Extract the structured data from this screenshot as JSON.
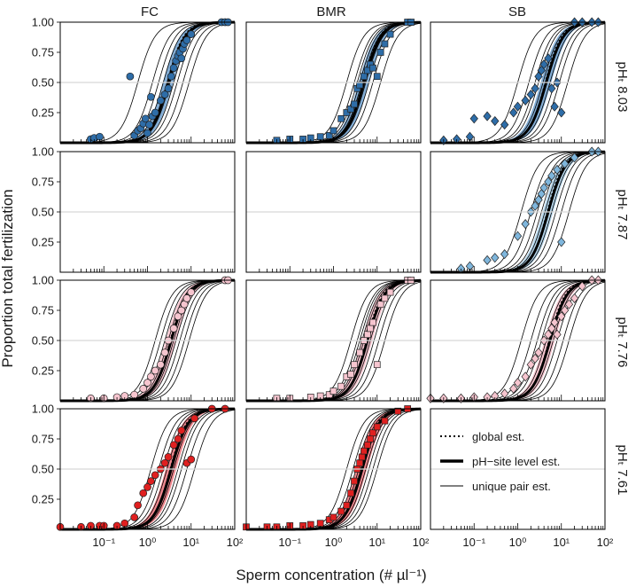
{
  "chart_data": {
    "type": "scatter",
    "xlabel": "Sperm concentration (# µl⁻¹)",
    "ylabel": "Proportion total fertilization",
    "xscale": "log",
    "xlim": [
      0.01,
      100
    ],
    "ylim": [
      0,
      1
    ],
    "x_ticks": [
      0.1,
      1,
      10,
      100
    ],
    "x_tick_labels": [
      "10⁻¹",
      "10⁰",
      "10¹",
      "10²"
    ],
    "y_tick_labels": [
      "1.00",
      "0.75",
      "0.50",
      "0.25"
    ],
    "columns": [
      "FC",
      "BMR",
      "SB"
    ],
    "rows": [
      {
        "label": "pHₜ 8.03",
        "fill": "#2e6da8",
        "band": "#5b93c8"
      },
      {
        "label": "pHₜ 7.87",
        "fill": "#7fb6dc",
        "band": "#9cc8e6"
      },
      {
        "label": "pHₜ 7.76",
        "fill": "#f6c5cf",
        "band": "#f4b3c0"
      },
      {
        "label": "pHₜ 7.61",
        "fill": "#e02020",
        "band": "#e9606a"
      }
    ],
    "legend": {
      "placement": "bottom-right panel",
      "entries": [
        {
          "label": "global est.",
          "style": "dotted"
        },
        {
          "label": "pH−site level est.",
          "style": "thick"
        },
        {
          "label": "unique pair est.",
          "style": "thin"
        }
      ]
    },
    "panels": [
      {
        "row": 0,
        "col": 0,
        "marker": "circle",
        "ec50": 3.0,
        "curves": [
          0.6,
          1.3,
          1.8,
          2.3,
          2.8,
          3.3,
          4.0,
          4.8,
          6.5,
          9.0
        ],
        "points": [
          [
            0.05,
            0.03
          ],
          [
            0.06,
            0.04
          ],
          [
            0.08,
            0.05
          ],
          [
            0.4,
            0.55
          ],
          [
            0.5,
            0.06
          ],
          [
            0.6,
            0.1
          ],
          [
            0.7,
            0.12
          ],
          [
            0.8,
            0.16
          ],
          [
            0.9,
            0.2
          ],
          [
            1.0,
            0.08
          ],
          [
            1.1,
            0.15
          ],
          [
            1.2,
            0.38
          ],
          [
            1.3,
            0.22
          ],
          [
            1.5,
            0.25
          ],
          [
            2.0,
            0.35
          ],
          [
            2.5,
            0.4
          ],
          [
            3.0,
            0.45
          ],
          [
            3.5,
            0.55
          ],
          [
            4.0,
            0.62
          ],
          [
            4.5,
            0.68
          ],
          [
            5.0,
            0.72
          ],
          [
            5.5,
            0.75
          ],
          [
            6.0,
            0.7
          ],
          [
            6.5,
            0.78
          ],
          [
            7.0,
            0.82
          ],
          [
            8.0,
            0.85
          ],
          [
            10.0,
            0.9
          ],
          [
            50.0,
            1.0
          ],
          [
            60.0,
            1.0
          ],
          [
            70.0,
            1.0
          ]
        ]
      },
      {
        "row": 0,
        "col": 1,
        "marker": "square",
        "ec50": 5.0,
        "curves": [
          2.0,
          3.0,
          3.5,
          4.0,
          4.5,
          5.0,
          5.5,
          6.5,
          8.0,
          12.0
        ],
        "points": [
          [
            0.05,
            0.02
          ],
          [
            0.1,
            0.03
          ],
          [
            0.2,
            0.03
          ],
          [
            0.3,
            0.04
          ],
          [
            0.5,
            0.05
          ],
          [
            0.8,
            0.06
          ],
          [
            1.0,
            0.1
          ],
          [
            1.5,
            0.2
          ],
          [
            2.0,
            0.25
          ],
          [
            2.5,
            0.28
          ],
          [
            3.0,
            0.32
          ],
          [
            3.5,
            0.45
          ],
          [
            4.0,
            0.48
          ],
          [
            5.0,
            0.55
          ],
          [
            6.0,
            0.6
          ],
          [
            7.0,
            0.65
          ],
          [
            8.0,
            0.62
          ],
          [
            10.0,
            0.55
          ],
          [
            12.0,
            0.75
          ],
          [
            15.0,
            0.82
          ],
          [
            20.0,
            0.9
          ],
          [
            50.0,
            1.0
          ],
          [
            60.0,
            1.0
          ]
        ]
      },
      {
        "row": 0,
        "col": 2,
        "marker": "diamond",
        "ec50": 4.5,
        "curves": [
          1.0,
          1.8,
          2.5,
          3.0,
          3.8,
          4.5,
          5.5,
          7.0,
          9.0,
          14.0
        ],
        "points": [
          [
            0.02,
            0.02
          ],
          [
            0.04,
            0.03
          ],
          [
            0.08,
            0.05
          ],
          [
            0.1,
            0.2
          ],
          [
            0.2,
            0.22
          ],
          [
            0.3,
            0.18
          ],
          [
            0.5,
            0.15
          ],
          [
            0.8,
            0.25
          ],
          [
            1.0,
            0.3
          ],
          [
            1.5,
            0.35
          ],
          [
            2.0,
            0.4
          ],
          [
            2.5,
            0.45
          ],
          [
            3.0,
            0.55
          ],
          [
            3.5,
            0.6
          ],
          [
            4.0,
            0.65
          ],
          [
            5.0,
            0.7
          ],
          [
            6.0,
            0.45
          ],
          [
            7.0,
            0.3
          ],
          [
            8.0,
            0.5
          ],
          [
            10.0,
            0.25
          ],
          [
            20.0,
            1.0
          ],
          [
            30.0,
            1.0
          ],
          [
            50.0,
            1.0
          ],
          [
            70.0,
            1.0
          ]
        ]
      },
      {
        "row": 1,
        "col": 2,
        "marker": "diamond",
        "ec50": 5.0,
        "curves": [
          1.2,
          2.0,
          2.8,
          3.5,
          4.2,
          5.0,
          6.0,
          7.5,
          10.0,
          15.0
        ],
        "points": [
          [
            0.05,
            0.03
          ],
          [
            0.08,
            0.05
          ],
          [
            0.2,
            0.1
          ],
          [
            0.3,
            0.12
          ],
          [
            0.5,
            0.15
          ],
          [
            1.0,
            0.3
          ],
          [
            1.5,
            0.4
          ],
          [
            2.0,
            0.5
          ],
          [
            2.5,
            0.55
          ],
          [
            3.0,
            0.6
          ],
          [
            3.5,
            0.65
          ],
          [
            4.0,
            0.7
          ],
          [
            5.0,
            0.75
          ],
          [
            6.0,
            0.8
          ],
          [
            8.0,
            0.85
          ],
          [
            10.0,
            0.25
          ],
          [
            12.0,
            0.9
          ],
          [
            20.0,
            0.95
          ],
          [
            50.0,
            1.0
          ],
          [
            70.0,
            1.0
          ]
        ]
      },
      {
        "row": 2,
        "col": 0,
        "marker": "circle",
        "ec50": 3.5,
        "curves": [
          1.5,
          2.0,
          2.5,
          3.0,
          3.5,
          4.0,
          4.5,
          5.5,
          7.0,
          9.0
        ],
        "points": [
          [
            0.05,
            0.02
          ],
          [
            0.1,
            0.02
          ],
          [
            0.2,
            0.03
          ],
          [
            0.3,
            0.04
          ],
          [
            0.5,
            0.05
          ],
          [
            0.8,
            0.1
          ],
          [
            1.0,
            0.15
          ],
          [
            1.2,
            0.2
          ],
          [
            1.5,
            0.25
          ],
          [
            2.0,
            0.3
          ],
          [
            2.5,
            0.4
          ],
          [
            3.0,
            0.5
          ],
          [
            4.0,
            0.6
          ],
          [
            5.0,
            0.7
          ],
          [
            6.0,
            0.75
          ],
          [
            7.0,
            0.8
          ],
          [
            8.0,
            0.85
          ],
          [
            10.0,
            0.9
          ],
          [
            60.0,
            1.0
          ],
          [
            70.0,
            1.0
          ]
        ]
      },
      {
        "row": 2,
        "col": 1,
        "marker": "square",
        "ec50": 6.0,
        "curves": [
          2.5,
          3.5,
          4.0,
          4.5,
          5.0,
          6.0,
          7.0,
          8.5,
          11.0,
          15.0
        ],
        "points": [
          [
            0.05,
            0.02
          ],
          [
            0.1,
            0.02
          ],
          [
            0.3,
            0.03
          ],
          [
            0.5,
            0.04
          ],
          [
            0.8,
            0.05
          ],
          [
            1.0,
            0.08
          ],
          [
            1.5,
            0.12
          ],
          [
            2.0,
            0.2
          ],
          [
            2.5,
            0.22
          ],
          [
            3.0,
            0.3
          ],
          [
            4.0,
            0.4
          ],
          [
            5.0,
            0.5
          ],
          [
            6.0,
            0.55
          ],
          [
            7.0,
            0.6
          ],
          [
            8.0,
            0.65
          ],
          [
            10.0,
            0.3
          ],
          [
            12.0,
            0.8
          ],
          [
            15.0,
            0.85
          ],
          [
            20.0,
            0.9
          ],
          [
            50.0,
            1.0
          ],
          [
            60.0,
            1.0
          ]
        ]
      },
      {
        "row": 2,
        "col": 2,
        "marker": "diamond",
        "ec50": 5.5,
        "curves": [
          1.2,
          2.0,
          2.8,
          3.5,
          4.5,
          5.5,
          6.5,
          8.0,
          11.0,
          15.0
        ],
        "points": [
          [
            0.01,
            0.02
          ],
          [
            0.02,
            0.02
          ],
          [
            0.05,
            0.02
          ],
          [
            0.1,
            0.03
          ],
          [
            0.2,
            0.03
          ],
          [
            0.3,
            0.04
          ],
          [
            0.5,
            0.06
          ],
          [
            0.8,
            0.1
          ],
          [
            1.0,
            0.15
          ],
          [
            1.5,
            0.2
          ],
          [
            2.0,
            0.3
          ],
          [
            2.5,
            0.35
          ],
          [
            3.0,
            0.4
          ],
          [
            4.0,
            0.5
          ],
          [
            5.0,
            0.55
          ],
          [
            6.0,
            0.6
          ],
          [
            7.0,
            0.65
          ],
          [
            8.0,
            0.55
          ],
          [
            10.0,
            0.7
          ],
          [
            12.0,
            0.75
          ],
          [
            15.0,
            0.8
          ],
          [
            20.0,
            0.85
          ],
          [
            30.0,
            0.95
          ],
          [
            50.0,
            1.0
          ],
          [
            70.0,
            1.0
          ]
        ]
      },
      {
        "row": 3,
        "col": 0,
        "marker": "circle",
        "ec50": 3.5,
        "curves": [
          1.2,
          1.8,
          2.3,
          2.8,
          3.3,
          4.0,
          5.0,
          6.0,
          8.0,
          12.0
        ],
        "points": [
          [
            0.01,
            0.02
          ],
          [
            0.03,
            0.02
          ],
          [
            0.05,
            0.03
          ],
          [
            0.08,
            0.03
          ],
          [
            0.1,
            0.03
          ],
          [
            0.2,
            0.03
          ],
          [
            0.3,
            0.05
          ],
          [
            0.5,
            0.1
          ],
          [
            0.6,
            0.2
          ],
          [
            0.8,
            0.3
          ],
          [
            1.0,
            0.35
          ],
          [
            1.2,
            0.4
          ],
          [
            1.5,
            0.45
          ],
          [
            2.0,
            0.5
          ],
          [
            2.5,
            0.55
          ],
          [
            3.0,
            0.6
          ],
          [
            4.0,
            0.7
          ],
          [
            5.0,
            0.75
          ],
          [
            6.0,
            0.82
          ],
          [
            8.0,
            0.55
          ],
          [
            10.0,
            0.58
          ],
          [
            12.0,
            0.92
          ],
          [
            30.0,
            1.0
          ],
          [
            60.0,
            1.0
          ]
        ]
      },
      {
        "row": 3,
        "col": 1,
        "marker": "square",
        "ec50": 4.5,
        "curves": [
          2.0,
          2.8,
          3.3,
          3.8,
          4.3,
          4.8,
          5.5,
          6.5,
          8.0,
          10.0
        ],
        "points": [
          [
            0.01,
            0.02
          ],
          [
            0.03,
            0.02
          ],
          [
            0.05,
            0.02
          ],
          [
            0.1,
            0.03
          ],
          [
            0.2,
            0.03
          ],
          [
            0.3,
            0.04
          ],
          [
            0.5,
            0.05
          ],
          [
            0.8,
            0.08
          ],
          [
            1.0,
            0.1
          ],
          [
            1.5,
            0.15
          ],
          [
            2.0,
            0.2
          ],
          [
            2.5,
            0.3
          ],
          [
            3.0,
            0.4
          ],
          [
            3.5,
            0.5
          ],
          [
            4.0,
            0.55
          ],
          [
            4.5,
            0.6
          ],
          [
            5.0,
            0.65
          ],
          [
            6.0,
            0.7
          ],
          [
            7.0,
            0.75
          ],
          [
            8.0,
            0.8
          ],
          [
            10.0,
            0.85
          ],
          [
            15.0,
            0.9
          ],
          [
            30.0,
            0.98
          ],
          [
            50.0,
            1.0
          ]
        ]
      }
    ]
  }
}
